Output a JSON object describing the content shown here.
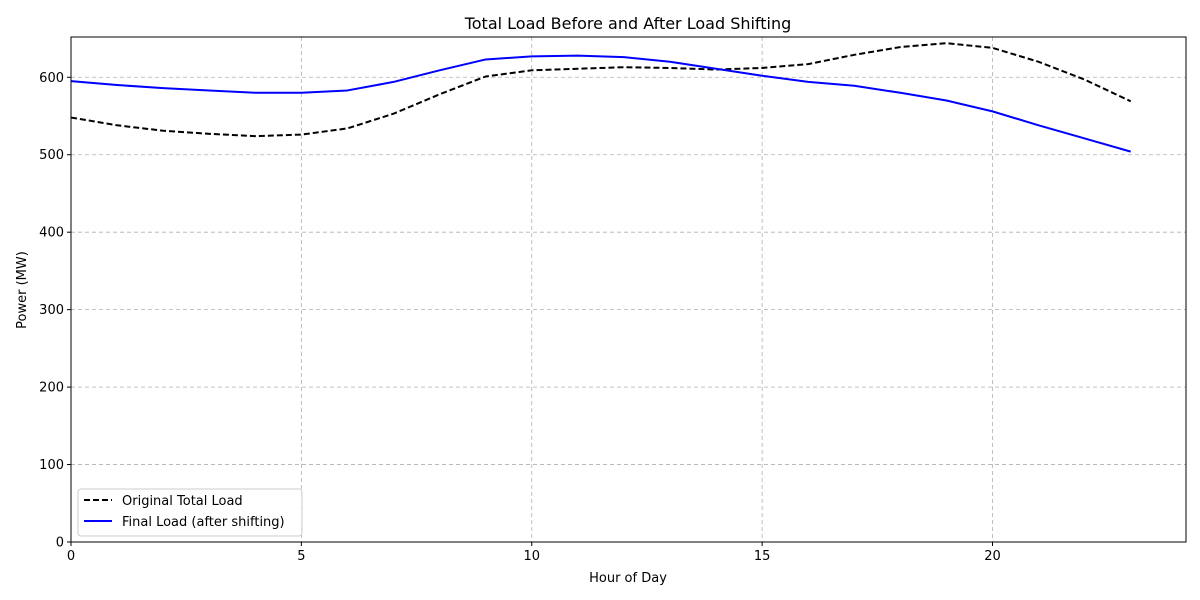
{
  "chart_data": {
    "type": "line",
    "title": "Total Load Before and After Load Shifting",
    "xlabel": "Hour of Day",
    "ylabel": "Power (MW)",
    "xlim": [
      0,
      24.2
    ],
    "ylim": [
      0,
      652
    ],
    "xticks": [
      0,
      5,
      10,
      15,
      20
    ],
    "yticks": [
      0,
      100,
      200,
      300,
      400,
      500,
      600
    ],
    "grid": true,
    "legend_position": "lower-left",
    "x": [
      0,
      1,
      2,
      3,
      4,
      5,
      6,
      7,
      8,
      9,
      10,
      11,
      12,
      13,
      14,
      15,
      16,
      17,
      18,
      19,
      20,
      21,
      22,
      23
    ],
    "series": [
      {
        "name": "Original Total Load",
        "color": "#000000",
        "style": "dashed",
        "values": [
          548,
          538,
          531,
          527,
          524,
          526,
          534,
          553,
          578,
          601,
          609,
          611,
          613,
          612,
          610,
          612,
          617,
          629,
          639,
          644,
          638,
          620,
          597,
          569
        ]
      },
      {
        "name": "Final Load (after shifting)",
        "color": "#0000ff",
        "style": "solid",
        "values": [
          595,
          590,
          586,
          583,
          580,
          580,
          583,
          594,
          609,
          623,
          627,
          628,
          626,
          620,
          611,
          602,
          594,
          589,
          580,
          570,
          556,
          538,
          521,
          504
        ]
      }
    ]
  }
}
